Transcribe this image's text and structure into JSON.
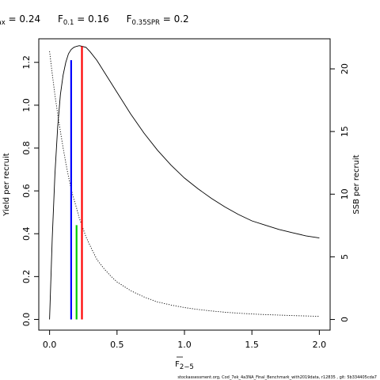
{
  "chart_data": {
    "type": "line",
    "title": {
      "fmax": {
        "main": "F",
        "sub": "max",
        "value": " = 0.24"
      },
      "f01": {
        "main": "F",
        "sub": "0.1",
        "value": " = 0.16"
      },
      "f035": {
        "main": "F",
        "sub": "0.35SPR",
        "value": " = 0.2"
      }
    },
    "xlabel": {
      "main": "F",
      "sub": "2−5"
    },
    "ylabel_left": "Yield per recruit",
    "ylabel_right": "SSB per recruit",
    "xlim": [
      -0.08,
      2.08
    ],
    "ylim_left": [
      -0.05,
      1.31
    ],
    "ylim_right": [
      -0.85,
      22.4
    ],
    "x_ticks": [
      {
        "value": 0.0,
        "label": "0.0"
      },
      {
        "value": 0.5,
        "label": "0.5"
      },
      {
        "value": 1.0,
        "label": "1.0"
      },
      {
        "value": 1.5,
        "label": "1.5"
      },
      {
        "value": 2.0,
        "label": "2.0"
      }
    ],
    "y_left_ticks": [
      {
        "value": 0.0,
        "label": "0.0"
      },
      {
        "value": 0.2,
        "label": "0.2"
      },
      {
        "value": 0.4,
        "label": "0.4"
      },
      {
        "value": 0.6,
        "label": "0.6"
      },
      {
        "value": 0.8,
        "label": "0.8"
      },
      {
        "value": 1.0,
        "label": "1.0"
      },
      {
        "value": 1.2,
        "label": "1.2"
      }
    ],
    "y_right_ticks": [
      {
        "value": 0,
        "label": "0"
      },
      {
        "value": 5,
        "label": "5"
      },
      {
        "value": 10,
        "label": "10"
      },
      {
        "value": 15,
        "label": "15"
      },
      {
        "value": 20,
        "label": "20"
      }
    ],
    "series": [
      {
        "axis": "left",
        "style": "solid",
        "color": "#000000",
        "x": [
          0,
          0.02,
          0.04,
          0.06,
          0.08,
          0.1,
          0.12,
          0.14,
          0.16,
          0.18,
          0.2,
          0.22,
          0.24,
          0.27,
          0.3,
          0.35,
          0.4,
          0.45,
          0.5,
          0.6,
          0.7,
          0.8,
          0.9,
          1.0,
          1.1,
          1.2,
          1.3,
          1.4,
          1.5,
          1.6,
          1.7,
          1.8,
          1.9,
          2.0
        ],
        "y": [
          0,
          0.38,
          0.68,
          0.9,
          1.05,
          1.14,
          1.2,
          1.24,
          1.26,
          1.27,
          1.275,
          1.278,
          1.275,
          1.27,
          1.25,
          1.21,
          1.16,
          1.11,
          1.06,
          0.96,
          0.87,
          0.79,
          0.72,
          0.66,
          0.61,
          0.565,
          0.525,
          0.49,
          0.46,
          0.44,
          0.42,
          0.405,
          0.39,
          0.38
        ]
      },
      {
        "axis": "right",
        "style": "dotted",
        "color": "#000000",
        "x": [
          0,
          0.02,
          0.04,
          0.06,
          0.08,
          0.1,
          0.12,
          0.14,
          0.16,
          0.18,
          0.2,
          0.22,
          0.24,
          0.27,
          0.3,
          0.35,
          0.4,
          0.45,
          0.5,
          0.6,
          0.7,
          0.8,
          0.9,
          1.0,
          1.1,
          1.2,
          1.3,
          1.4,
          1.5,
          1.6,
          1.7,
          1.8,
          1.9,
          2.0
        ],
        "y": [
          21.4,
          19.6,
          17.9,
          16.4,
          15.0,
          13.7,
          12.5,
          11.4,
          10.4,
          9.6,
          8.9,
          8.1,
          7.5,
          6.6,
          5.9,
          4.8,
          4.1,
          3.5,
          3.0,
          2.3,
          1.8,
          1.4,
          1.15,
          0.95,
          0.8,
          0.68,
          0.58,
          0.5,
          0.44,
          0.39,
          0.35,
          0.31,
          0.28,
          0.25
        ]
      }
    ],
    "reference_lines": [
      {
        "name": "F0.1",
        "x": 0.16,
        "y_top": 1.21,
        "color": "#0000ff"
      },
      {
        "name": "F0.35SPR",
        "x": 0.2,
        "y_top": 0.44,
        "color": "#00cc00"
      },
      {
        "name": "Fmax",
        "x": 0.24,
        "y_top": 1.275,
        "color": "#ff0000"
      }
    ],
    "footer": "stockassessment.org,  Cod_7ek_4a3NA_Final_Benchmark_with2019data,  r12835 ,  git: 5b334405cda7"
  }
}
